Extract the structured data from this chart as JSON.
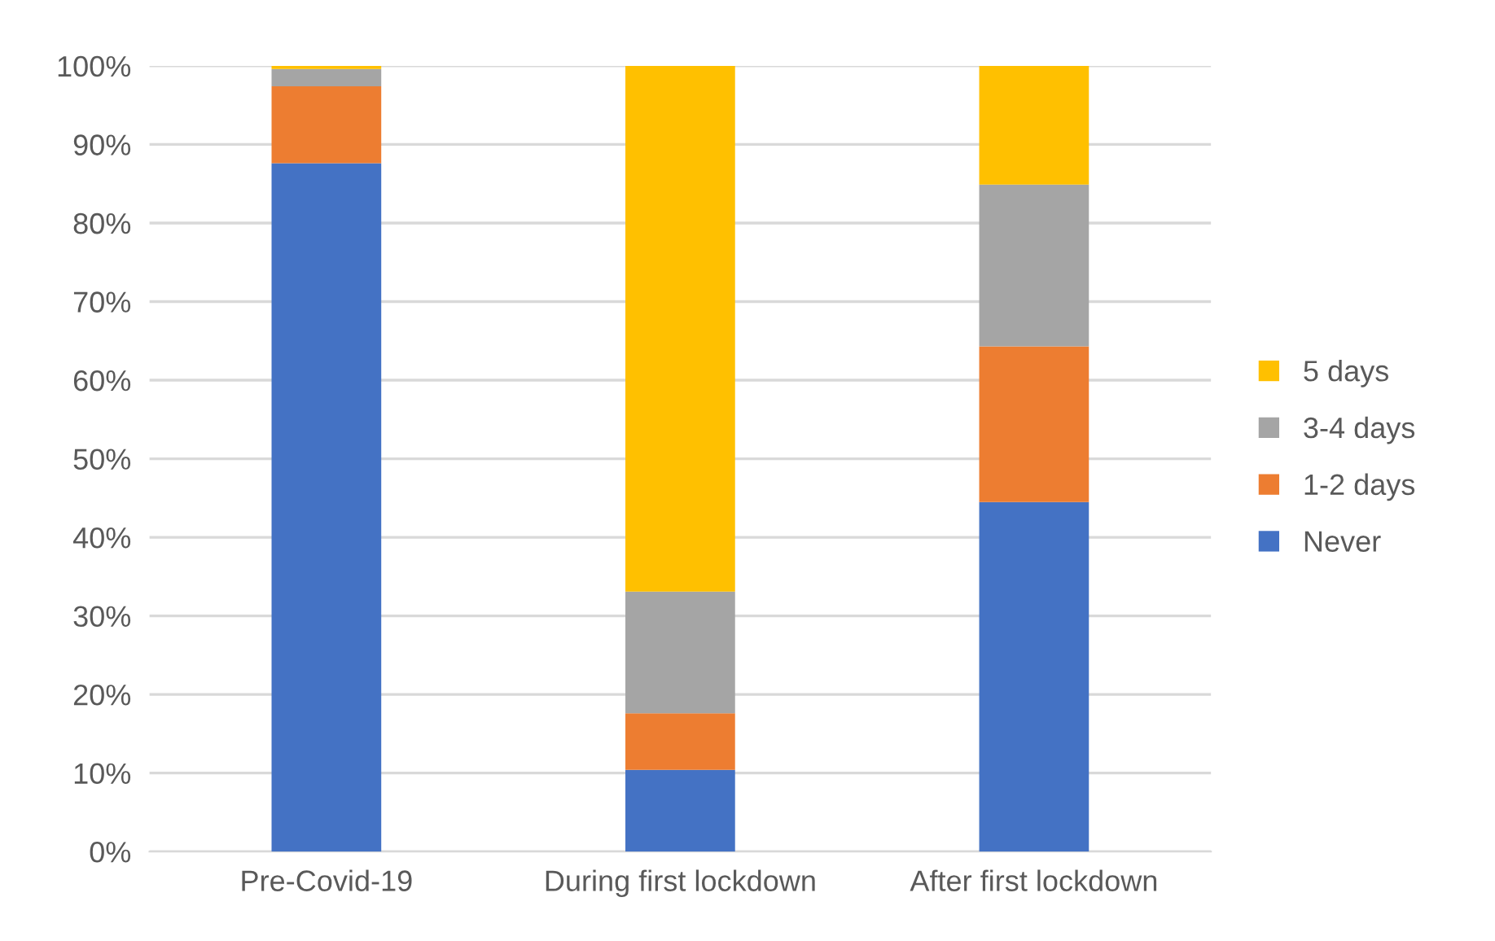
{
  "chart_data": {
    "type": "bar",
    "stacked": true,
    "categories": [
      "Pre-Covid-19",
      "During first lockdown",
      "After first lockdown"
    ],
    "series": [
      {
        "name": "Never",
        "color": "#4472c4",
        "values": [
          87.6,
          10.4,
          44.5
        ]
      },
      {
        "name": "1-2 days",
        "color": "#ed7d31",
        "values": [
          9.8,
          7.2,
          19.8
        ]
      },
      {
        "name": "3-4 days",
        "color": "#a5a5a5",
        "values": [
          2.2,
          15.5,
          20.6
        ]
      },
      {
        "name": "5 days",
        "color": "#ffc000",
        "values": [
          0.4,
          66.9,
          15.1
        ]
      }
    ],
    "ylim": [
      0,
      100
    ],
    "yticks": [
      {
        "value": 0,
        "label": "0%"
      },
      {
        "value": 10,
        "label": "10%"
      },
      {
        "value": 20,
        "label": "20%"
      },
      {
        "value": 30,
        "label": "30%"
      },
      {
        "value": 40,
        "label": "40%"
      },
      {
        "value": 50,
        "label": "50%"
      },
      {
        "value": 60,
        "label": "60%"
      },
      {
        "value": 70,
        "label": "70%"
      },
      {
        "value": 80,
        "label": "80%"
      },
      {
        "value": 90,
        "label": "90%"
      },
      {
        "value": 100,
        "label": "100%"
      }
    ],
    "grid": "y",
    "legend": "right"
  }
}
